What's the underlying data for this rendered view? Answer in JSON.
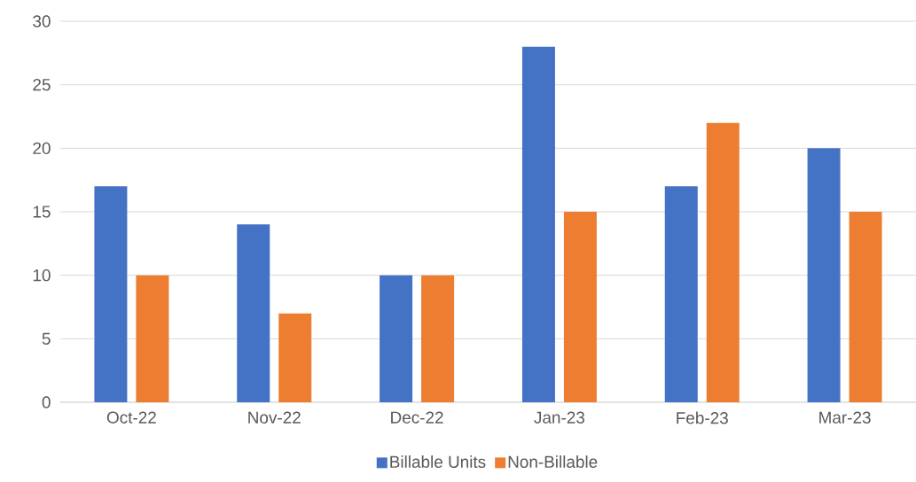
{
  "chart_data": {
    "type": "bar",
    "categories": [
      "Oct-22",
      "Nov-22",
      "Dec-22",
      "Jan-23",
      "Feb-23",
      "Mar-23"
    ],
    "series": [
      {
        "name": "Billable Units",
        "color": "#4472c4",
        "values": [
          17,
          14,
          10,
          28,
          17,
          20
        ]
      },
      {
        "name": "Non-Billable",
        "color": "#ed7d31",
        "values": [
          10,
          7,
          10,
          15,
          22,
          15
        ]
      }
    ],
    "ylim": [
      0,
      30
    ],
    "yticks": [
      0,
      5,
      10,
      15,
      20,
      25,
      30
    ],
    "grid": "y",
    "legend": "bottom"
  }
}
